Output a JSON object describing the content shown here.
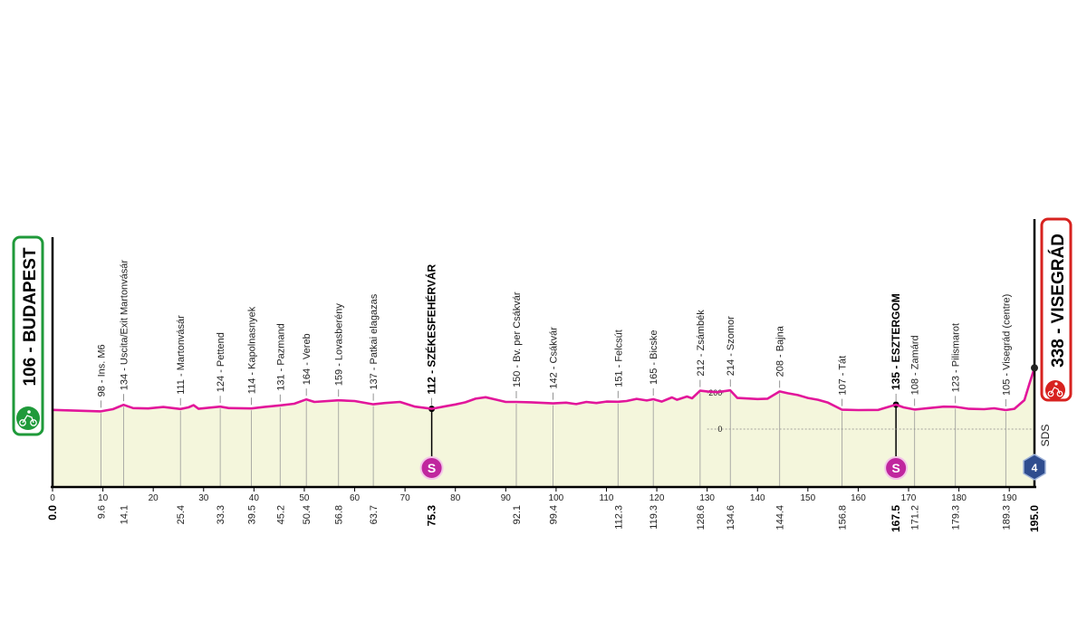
{
  "chart_data": {
    "type": "area",
    "start_label": "106 - BUDAPEST",
    "finish_label": "338 - VISEGRÁD",
    "start_km_label": "0.0",
    "finish_km_label": "195.0",
    "sds_label": "SDS",
    "sds_badge": "4",
    "sprint_badge": "S",
    "altitude_reference_labels": [
      "200",
      "0"
    ],
    "x_ticks": [
      0,
      10,
      20,
      30,
      40,
      50,
      60,
      70,
      80,
      90,
      100,
      110,
      120,
      130,
      140,
      150,
      160,
      170,
      180,
      190
    ],
    "xlim": [
      0,
      195
    ],
    "ylim": [
      0,
      360
    ],
    "waypoints": [
      {
        "name": "98 - Ins. M6",
        "km": "9.6",
        "x": 9.6,
        "bold": false
      },
      {
        "name": "134 - Uscita/Exit  Martonvásár",
        "km": "14.1",
        "x": 14.1,
        "bold": false
      },
      {
        "name": "111 - Martonvásár",
        "km": "25.4",
        "x": 25.4,
        "bold": false
      },
      {
        "name": "124 - Pettend",
        "km": "33.3",
        "x": 33.3,
        "bold": false
      },
      {
        "name": "114 - Kapolnasnyek",
        "km": "39.5",
        "x": 39.5,
        "bold": false
      },
      {
        "name": "131 - Pazmand",
        "km": "45.2",
        "x": 45.2,
        "bold": false
      },
      {
        "name": "164 - Vereb",
        "km": "50.4",
        "x": 50.4,
        "bold": false
      },
      {
        "name": "159 - Lovasberény",
        "km": "56.8",
        "x": 56.8,
        "bold": false
      },
      {
        "name": "137 - Patkai elagazas",
        "km": "63.7",
        "x": 63.7,
        "bold": false
      },
      {
        "name": "112 - SZÉKESFEHÉRVÁR",
        "km": "75.3",
        "x": 75.3,
        "bold": true,
        "sprint": true
      },
      {
        "name": "150 - Bv. per Csákvár",
        "km": "92.1",
        "x": 92.1,
        "bold": false
      },
      {
        "name": "142 - Csákvár",
        "km": "99.4",
        "x": 99.4,
        "bold": false
      },
      {
        "name": "151 - Felcsút",
        "km": "112.3",
        "x": 112.3,
        "bold": false
      },
      {
        "name": "165 - Bicske",
        "km": "119.3",
        "x": 119.3,
        "bold": false
      },
      {
        "name": "212 - Zsámbék",
        "km": "128.6",
        "x": 128.6,
        "bold": false
      },
      {
        "name": "214 - Szomor",
        "km": "134.6",
        "x": 134.6,
        "bold": false
      },
      {
        "name": "208 - Bajna",
        "km": "144.4",
        "x": 144.4,
        "bold": false
      },
      {
        "name": "107 - Tát",
        "km": "156.8",
        "x": 156.8,
        "bold": false
      },
      {
        "name": "135 - ESZTERGOM",
        "km": "167.5",
        "x": 167.5,
        "bold": true,
        "sprint": true
      },
      {
        "name": "108 - Zamárd",
        "km": "171.2",
        "x": 171.2,
        "bold": false
      },
      {
        "name": "123 - Pilismarot",
        "km": "179.3",
        "x": 179.3,
        "bold": false
      },
      {
        "name": "105 - Visegrád (centre)",
        "km": "189.3",
        "x": 189.3,
        "bold": false
      }
    ],
    "profile": [
      [
        0,
        106
      ],
      [
        9.6,
        98
      ],
      [
        12,
        110
      ],
      [
        14.1,
        134
      ],
      [
        16,
        116
      ],
      [
        19,
        114
      ],
      [
        22,
        122
      ],
      [
        25.4,
        111
      ],
      [
        27,
        120
      ],
      [
        28,
        132
      ],
      [
        29,
        112
      ],
      [
        31,
        118
      ],
      [
        33.3,
        124
      ],
      [
        35,
        116
      ],
      [
        39.5,
        114
      ],
      [
        42,
        122
      ],
      [
        45.2,
        131
      ],
      [
        48,
        140
      ],
      [
        50.4,
        164
      ],
      [
        52,
        150
      ],
      [
        56.8,
        159
      ],
      [
        60,
        155
      ],
      [
        63.7,
        137
      ],
      [
        66,
        144
      ],
      [
        69,
        150
      ],
      [
        72,
        124
      ],
      [
        75.3,
        112
      ],
      [
        78,
        126
      ],
      [
        80,
        136
      ],
      [
        82,
        148
      ],
      [
        84,
        168
      ],
      [
        86,
        176
      ],
      [
        88,
        163
      ],
      [
        90,
        150
      ],
      [
        92.1,
        150
      ],
      [
        95,
        148
      ],
      [
        99.4,
        142
      ],
      [
        102,
        146
      ],
      [
        104,
        138
      ],
      [
        106,
        150
      ],
      [
        108,
        144
      ],
      [
        110,
        152
      ],
      [
        112.3,
        151
      ],
      [
        114,
        155
      ],
      [
        116,
        167
      ],
      [
        118,
        158
      ],
      [
        119.3,
        165
      ],
      [
        121,
        152
      ],
      [
        123,
        175
      ],
      [
        124,
        162
      ],
      [
        126,
        180
      ],
      [
        127,
        170
      ],
      [
        128.6,
        212
      ],
      [
        130,
        208
      ],
      [
        132,
        204
      ],
      [
        134.6,
        214
      ],
      [
        136,
        172
      ],
      [
        140,
        166
      ],
      [
        142,
        168
      ],
      [
        144.4,
        208
      ],
      [
        146,
        198
      ],
      [
        148,
        188
      ],
      [
        150,
        172
      ],
      [
        152,
        162
      ],
      [
        154,
        146
      ],
      [
        156.8,
        107
      ],
      [
        160,
        105
      ],
      [
        164,
        106
      ],
      [
        167.5,
        135
      ],
      [
        169,
        120
      ],
      [
        171.2,
        108
      ],
      [
        174,
        116
      ],
      [
        177,
        124
      ],
      [
        179.3,
        123
      ],
      [
        182,
        112
      ],
      [
        185,
        110
      ],
      [
        187,
        115
      ],
      [
        189.3,
        105
      ],
      [
        191,
        112
      ],
      [
        193,
        160
      ],
      [
        194,
        250
      ],
      [
        195,
        338
      ]
    ]
  }
}
